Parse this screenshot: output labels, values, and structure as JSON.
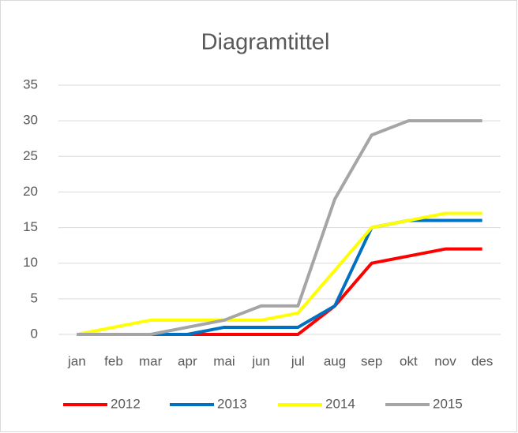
{
  "chart_data": {
    "type": "line",
    "title": "Diagramtittel",
    "categories": [
      "jan",
      "feb",
      "mar",
      "apr",
      "mai",
      "jun",
      "jul",
      "aug",
      "sep",
      "okt",
      "nov",
      "des"
    ],
    "series": [
      {
        "name": "2012",
        "color": "#ff0000",
        "values": [
          0,
          0,
          0,
          0,
          0,
          0,
          0,
          4,
          10,
          11,
          12,
          12
        ]
      },
      {
        "name": "2013",
        "color": "#0070c0",
        "values": [
          0,
          0,
          0,
          0,
          1,
          1,
          1,
          4,
          15,
          16,
          16,
          16
        ]
      },
      {
        "name": "2014",
        "color": "#ffff00",
        "values": [
          0,
          1,
          2,
          2,
          2,
          2,
          3,
          9,
          15,
          16,
          17,
          17
        ]
      },
      {
        "name": "2015",
        "color": "#a5a5a5",
        "values": [
          0,
          0,
          0,
          1,
          2,
          4,
          4,
          19,
          28,
          30,
          30,
          30
        ]
      }
    ],
    "ylim": [
      0,
      35
    ],
    "yticks": [
      0,
      5,
      10,
      15,
      20,
      25,
      30,
      35
    ],
    "grid": true,
    "legend": "bottom"
  }
}
